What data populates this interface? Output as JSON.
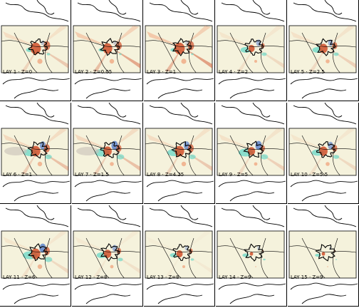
{
  "figure": {
    "panels": [
      {
        "label": "LAY 1 · Z=0",
        "layer": 1,
        "z": "0"
      },
      {
        "label": "LAY 2 · Z=0.05",
        "layer": 2,
        "z": "0.05"
      },
      {
        "label": "LAY 3 · Z=1",
        "layer": 3,
        "z": "1"
      },
      {
        "label": "LAY 4 · Z=2",
        "layer": 4,
        "z": "2"
      },
      {
        "label": "LAY 5 · Z=2.5",
        "layer": 5,
        "z": "2.5"
      },
      {
        "label": "LAY 6 · Z=1",
        "layer": 6,
        "z": "1"
      },
      {
        "label": "LAY 7 · Z=1.5",
        "layer": 7,
        "z": "1.5"
      },
      {
        "label": "LAY 8 · Z=4.25",
        "layer": 8,
        "z": "4.25"
      },
      {
        "label": "LAY 9 · Z=5",
        "layer": 9,
        "z": "5"
      },
      {
        "label": "LAY 10 · Z=5.5",
        "layer": 10,
        "z": "5.5"
      },
      {
        "label": "LAY 11 · Z=6",
        "layer": 11,
        "z": "6"
      },
      {
        "label": "LAY 12 · Z=8",
        "layer": 12,
        "z": "8"
      },
      {
        "label": "LAY 13 · Z=8",
        "layer": 13,
        "z": "8"
      },
      {
        "label": "LAY 14 · Z=9",
        "layer": 14,
        "z": "9"
      },
      {
        "label": "LAY 15 · Z=9",
        "layer": 15,
        "z": "9"
      }
    ]
  },
  "colors": {
    "map_background": "#f5f2dc",
    "warm_strong": "#d0502a",
    "warm_light": "#f0a882",
    "cool_strong": "#2a60c8",
    "cool_light": "#70d8c8",
    "neutral": "#c8c0b8",
    "outline": "#000000"
  }
}
